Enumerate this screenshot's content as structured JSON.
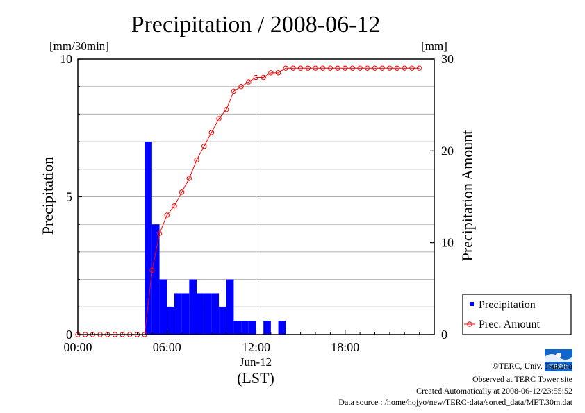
{
  "chart_data": {
    "type": "bar",
    "title": "Precipitation / 2008-06-12",
    "y_left": {
      "label": "Precipitation",
      "unit": "[mm/30min]",
      "range": [
        0,
        10
      ],
      "ticks": [
        "0",
        "5",
        "10"
      ]
    },
    "y_right": {
      "label": "Precipitation Amount",
      "unit": "[mm]",
      "range": [
        0,
        30
      ],
      "ticks": [
        "0",
        "10",
        "20",
        "30"
      ]
    },
    "x_axis": {
      "range_hours": [
        0,
        24
      ],
      "ticks": [
        "00:00",
        "06:00",
        "12:00",
        "18:00"
      ],
      "date_label": "Jun-12",
      "zone_label": "(LST)"
    },
    "grid": true,
    "legend_position": "right",
    "series": [
      {
        "name": "Precipitation",
        "kind": "bar",
        "color": "#0000ff",
        "points": [
          {
            "time": "04:30",
            "value": 7.0
          },
          {
            "time": "05:00",
            "value": 4.0
          },
          {
            "time": "05:30",
            "value": 2.0
          },
          {
            "time": "06:00",
            "value": 1.0
          },
          {
            "time": "06:30",
            "value": 1.5
          },
          {
            "time": "07:00",
            "value": 1.5
          },
          {
            "time": "07:30",
            "value": 2.0
          },
          {
            "time": "08:00",
            "value": 1.5
          },
          {
            "time": "08:30",
            "value": 1.5
          },
          {
            "time": "09:00",
            "value": 1.5
          },
          {
            "time": "09:30",
            "value": 1.0
          },
          {
            "time": "10:00",
            "value": 2.0
          },
          {
            "time": "10:30",
            "value": 0.5
          },
          {
            "time": "11:00",
            "value": 0.5
          },
          {
            "time": "11:30",
            "value": 0.5
          },
          {
            "time": "12:30",
            "value": 0.5
          },
          {
            "time": "13:30",
            "value": 0.5
          }
        ]
      },
      {
        "name": "Prec. Amount",
        "kind": "line",
        "color": "#ff0000",
        "times": [
          "00:00",
          "00:30",
          "01:00",
          "01:30",
          "02:00",
          "02:30",
          "03:00",
          "03:30",
          "04:00",
          "04:30",
          "05:00",
          "05:30",
          "06:00",
          "06:30",
          "07:00",
          "07:30",
          "08:00",
          "08:30",
          "09:00",
          "09:30",
          "10:00",
          "10:30",
          "11:00",
          "11:30",
          "12:00",
          "12:30",
          "13:00",
          "13:30",
          "14:00",
          "14:30",
          "15:00",
          "15:30",
          "16:00",
          "16:30",
          "17:00",
          "17:30",
          "18:00",
          "18:30",
          "19:00",
          "19:30",
          "20:00",
          "20:30",
          "21:00",
          "21:30",
          "22:00",
          "22:30",
          "23:00"
        ],
        "values": [
          0,
          0,
          0,
          0,
          0,
          0,
          0,
          0,
          0,
          0,
          7,
          11,
          13,
          14,
          15.5,
          17,
          19,
          20.5,
          22,
          23.5,
          24.5,
          26.5,
          27,
          27.5,
          28,
          28,
          28.5,
          28.5,
          29,
          29,
          29,
          29,
          29,
          29,
          29,
          29,
          29,
          29,
          29,
          29,
          29,
          29,
          29,
          29,
          29,
          29,
          29
        ]
      }
    ]
  },
  "credits": {
    "copyright": "©TERC, Univ. Tsukuba",
    "site": "Observed at TERC Tower site",
    "created": "Created Automatically at 2008-06-12/23:55:52",
    "source": "Data source : /home/hojyo/new/TERC-data/sorted_data/MET.30m.dat"
  },
  "logo": {
    "text": "TERC",
    "color": "#1166cc"
  }
}
